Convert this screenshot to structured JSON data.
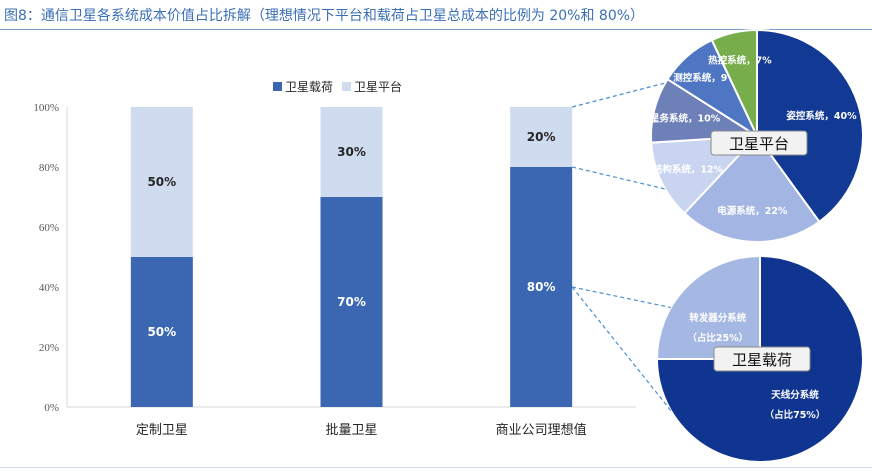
{
  "title": "图8：通信卫星各系统成本价值占比拆解（理想情况下平台和载荷占卫星总成本的比例为 20%和 80%）",
  "colors": {
    "title": "#3b6fb6",
    "payload": "#3b66b2",
    "platform": "#cfdcf0",
    "axis": "#d9d9d9",
    "connector": "#4a90d0"
  },
  "chart_data": [
    {
      "type": "bar",
      "stacked": true,
      "categories": [
        "定制卫星",
        "批量卫星",
        "商业公司理想值"
      ],
      "series": [
        {
          "name": "卫星载荷",
          "values": [
            50,
            70,
            80
          ],
          "labels": [
            "50%",
            "70%",
            "80%"
          ]
        },
        {
          "name": "卫星平台",
          "values": [
            50,
            30,
            20
          ],
          "labels": [
            "50%",
            "30%",
            "20%"
          ]
        }
      ],
      "yticks": [
        "0%",
        "20%",
        "40%",
        "60%",
        "80%",
        "100%"
      ],
      "ylim": [
        0,
        100
      ],
      "legend_position": "top-center",
      "grid": false
    },
    {
      "type": "pie",
      "title": "卫星平台",
      "slices": [
        {
          "name": "姿控系统",
          "value": 40,
          "label": "姿控系统，40%",
          "color": "#123a94"
        },
        {
          "name": "电源系统",
          "value": 22,
          "label": "电源系统，22%",
          "color": "#a3b5e3"
        },
        {
          "name": "结构系统",
          "value": 12,
          "label": "结构系统，12%",
          "color": "#c8d4f0"
        },
        {
          "name": "星务系统",
          "value": 10,
          "label": "星务系统，10%",
          "color": "#6e80b8"
        },
        {
          "name": "测控系统",
          "value": 9,
          "label": "测控系统，9%",
          "color": "#4f76c2"
        },
        {
          "name": "热控系统",
          "value": 7,
          "label": "热控系统，7%",
          "color": "#77ad4a"
        }
      ]
    },
    {
      "type": "pie",
      "title": "卫星载荷",
      "slices": [
        {
          "name": "天线分系统",
          "value": 75,
          "label": "天线分系统",
          "sublabel": "（占比75%）",
          "color": "#0f3591"
        },
        {
          "name": "转发器分系统",
          "value": 25,
          "label": "转发器分系统",
          "sublabel": "（占比25%）",
          "color": "#a5b7e3"
        }
      ]
    }
  ]
}
